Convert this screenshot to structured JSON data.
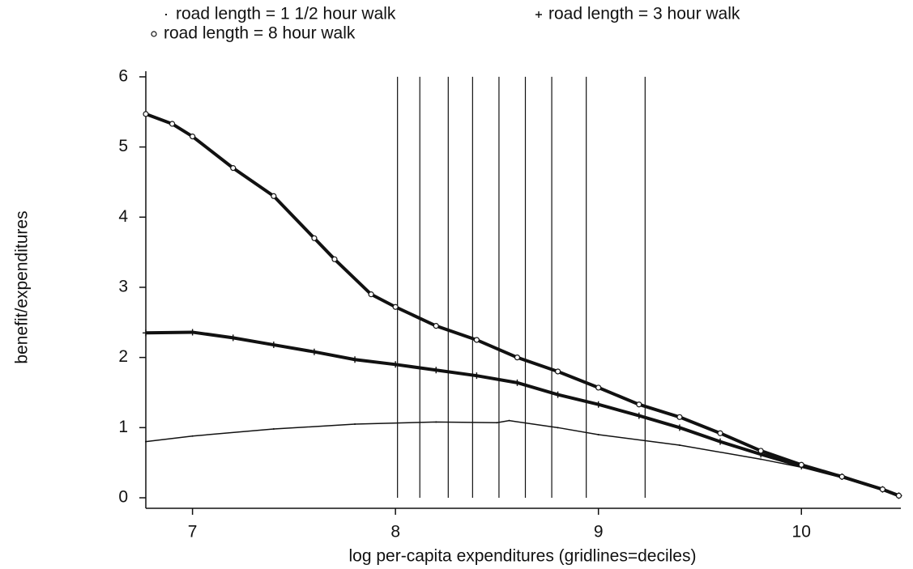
{
  "chart_data": {
    "type": "line",
    "xlabel": "log per-capita expenditures (gridlines=deciles)",
    "ylabel": "benefit/expenditures",
    "xlim": [
      6.77,
      10.49
    ],
    "ylim": [
      -0.15,
      6.08
    ],
    "xticks": [
      7,
      8,
      9,
      10
    ],
    "yticks": [
      0,
      1,
      2,
      3,
      4,
      5,
      6
    ],
    "xgrid": [
      8.01,
      8.12,
      8.26,
      8.38,
      8.51,
      8.64,
      8.77,
      8.94,
      9.23
    ],
    "series": [
      {
        "name": "road length = 1 1/2 hour walk",
        "color": "#111111",
        "marker": "dot",
        "x": [
          6.77,
          7.0,
          7.4,
          7.8,
          8.2,
          8.5,
          8.56,
          8.8,
          9.0,
          9.4,
          9.8,
          10.2,
          10.48
        ],
        "values": [
          0.8,
          0.88,
          0.98,
          1.05,
          1.08,
          1.07,
          1.1,
          1.0,
          0.9,
          0.75,
          0.55,
          0.32,
          0.03
        ]
      },
      {
        "name": "road length = 3 hour walk",
        "color": "#111111",
        "marker": "plus",
        "x": [
          6.77,
          7.0,
          7.2,
          7.4,
          7.6,
          7.8,
          8.0,
          8.2,
          8.4,
          8.6,
          8.8,
          9.0,
          9.2,
          9.4,
          9.6,
          9.8,
          10.0,
          10.2,
          10.4,
          10.48
        ],
        "values": [
          2.35,
          2.36,
          2.28,
          2.18,
          2.08,
          1.97,
          1.9,
          1.82,
          1.74,
          1.64,
          1.47,
          1.33,
          1.17,
          1.0,
          0.8,
          0.62,
          0.45,
          0.3,
          0.12,
          0.03
        ]
      },
      {
        "name": "road length = 8 hour walk",
        "color": "#111111",
        "marker": "circle",
        "x": [
          6.77,
          6.9,
          7.0,
          7.2,
          7.4,
          7.6,
          7.7,
          7.88,
          8.0,
          8.2,
          8.4,
          8.6,
          8.8,
          9.0,
          9.2,
          9.4,
          9.6,
          9.8,
          10.0,
          10.2,
          10.4,
          10.48
        ],
        "values": [
          5.47,
          5.33,
          5.15,
          4.7,
          4.3,
          3.7,
          3.4,
          2.9,
          2.72,
          2.45,
          2.25,
          2.0,
          1.8,
          1.57,
          1.33,
          1.15,
          0.92,
          0.67,
          0.47,
          0.3,
          0.12,
          0.03
        ]
      }
    ]
  }
}
